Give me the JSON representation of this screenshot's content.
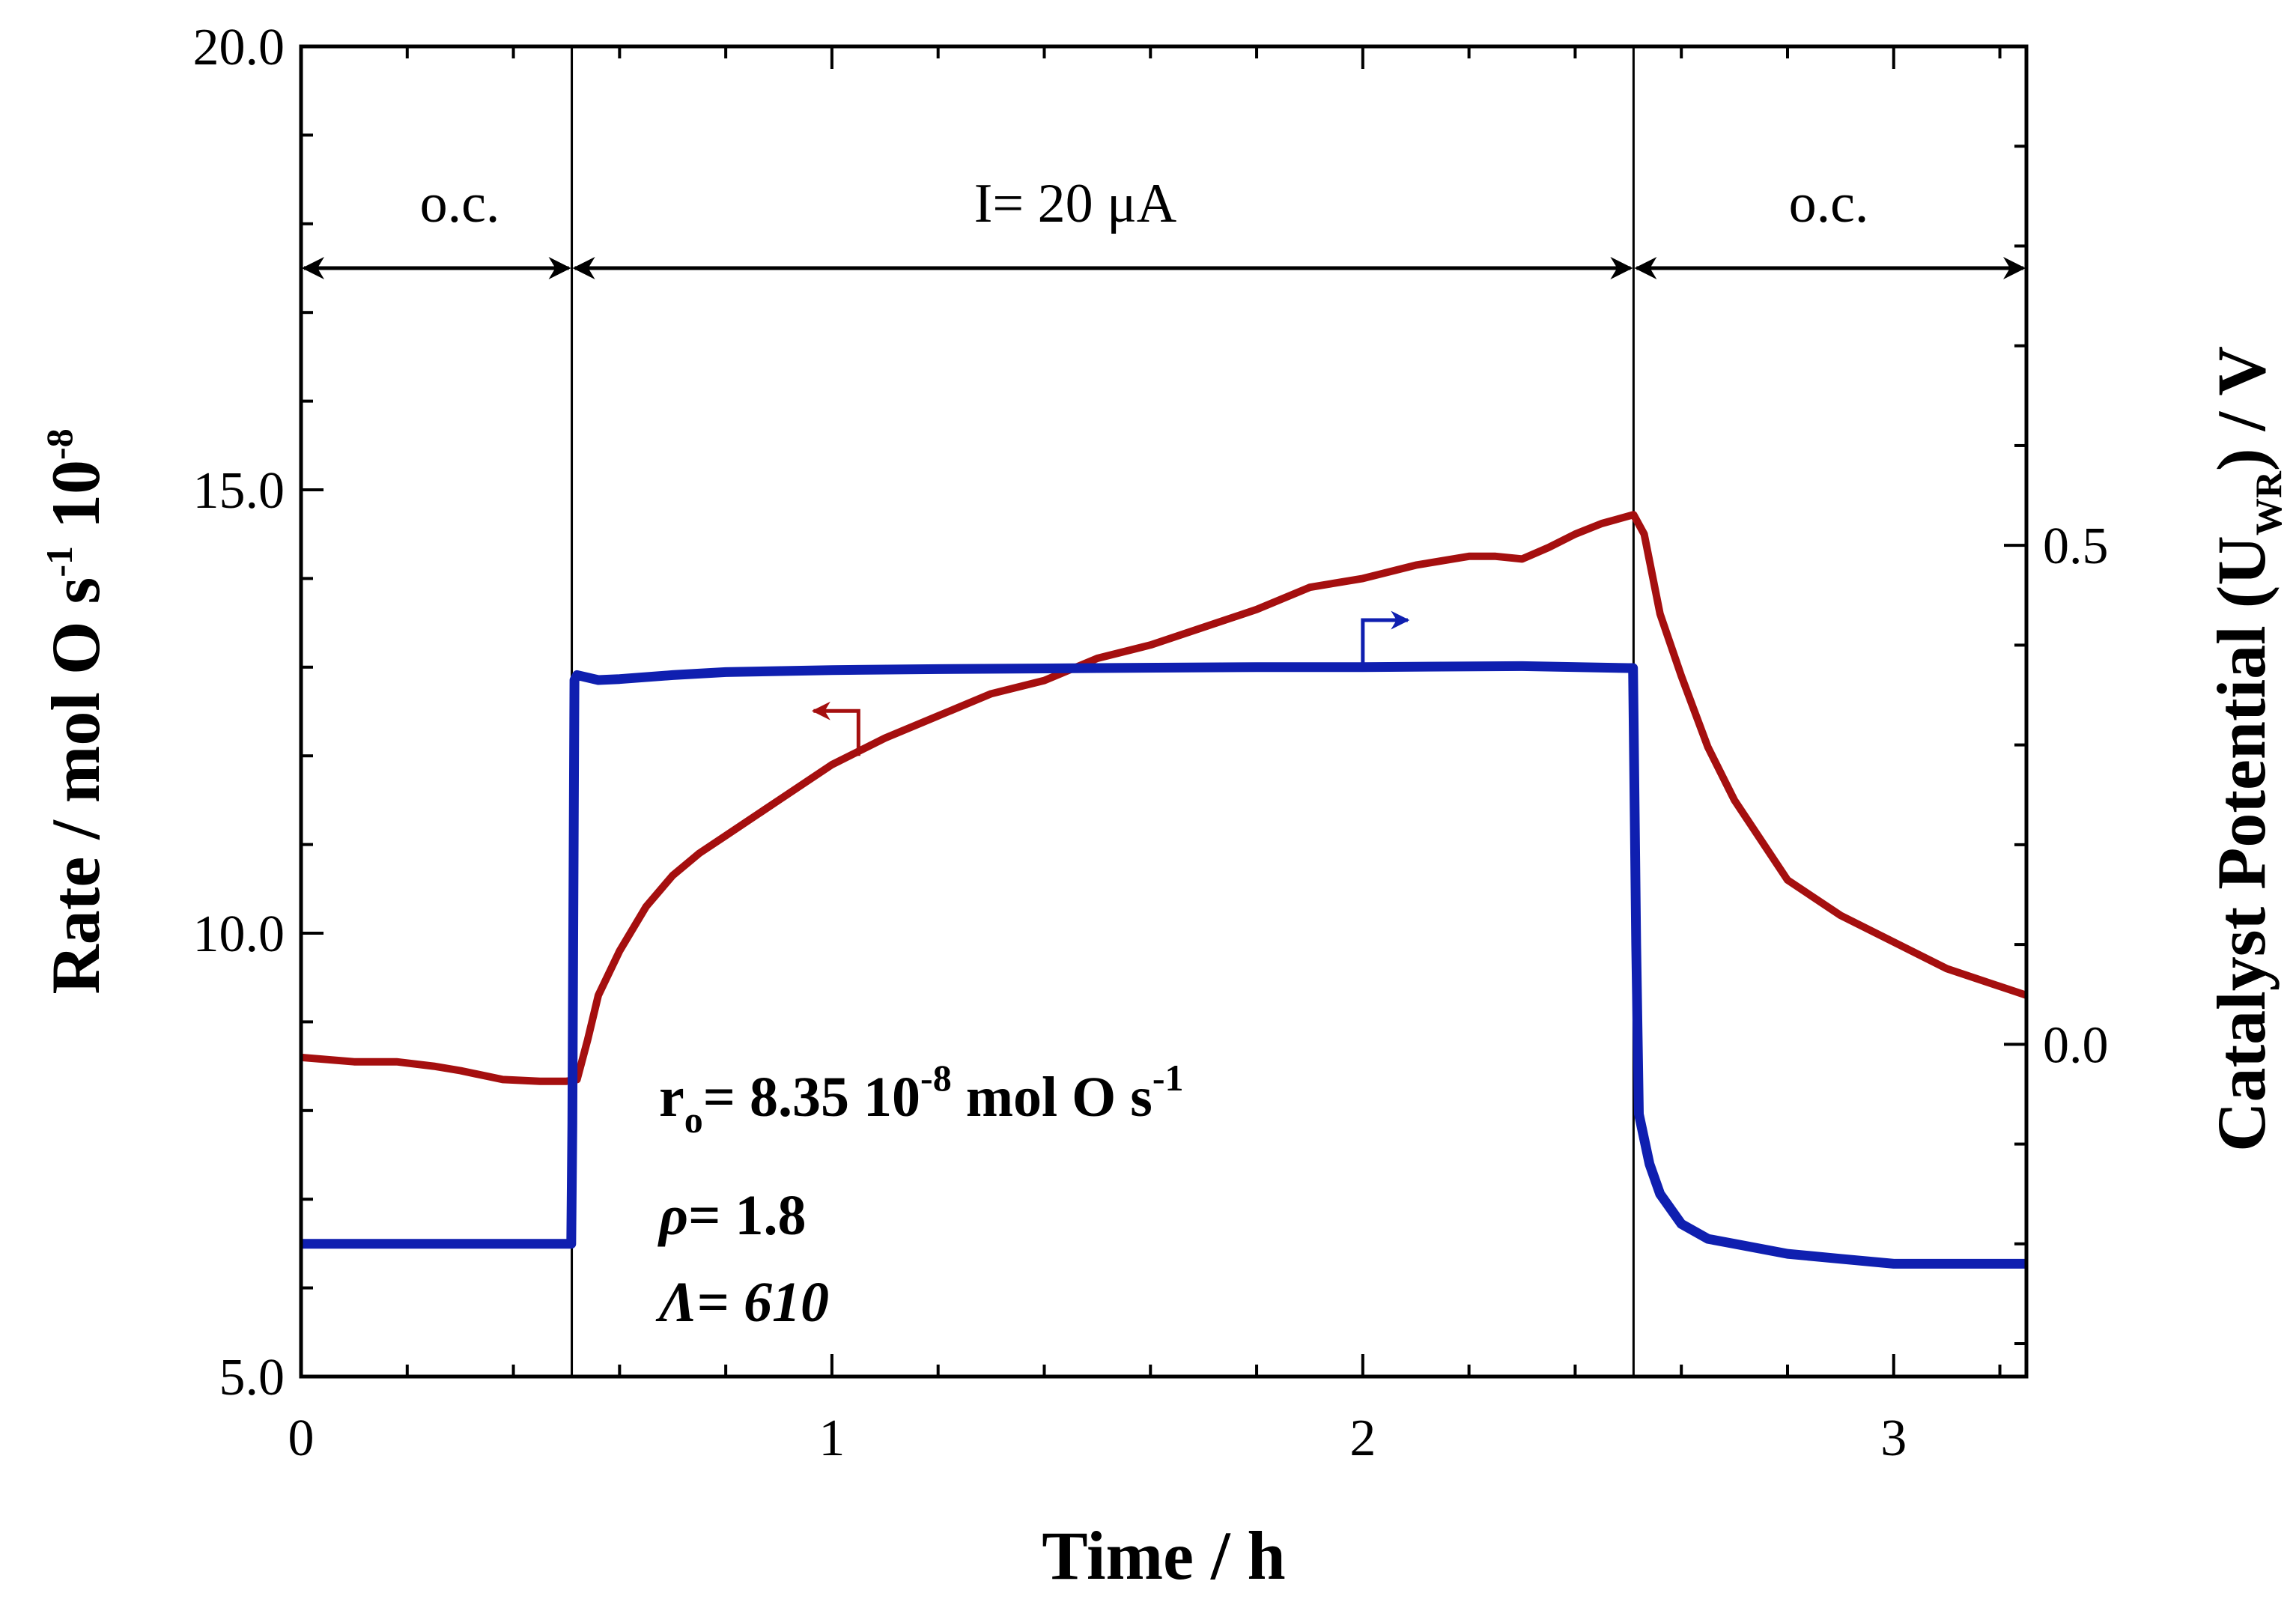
{
  "chart_data": {
    "type": "line",
    "xlabel": "Time / h",
    "ylabel_left_main": "Rate / mol O s",
    "ylabel_left_sup": "-1",
    "ylabel_left_tail": " 10",
    "ylabel_left_sup2": "-8",
    "ylabel_right_main": "Catalyst Potential (U",
    "ylabel_right_sub": "WR",
    "ylabel_right_tail": ") / V",
    "xlim": [
      0,
      3.25
    ],
    "ylim_left": [
      5.0,
      20.0
    ],
    "ylim_right": [
      -0.333,
      1.0
    ],
    "x_ticks": [
      0,
      1,
      2,
      3
    ],
    "x_tick_labels": [
      "0",
      "1",
      "2",
      "3"
    ],
    "y_left_ticks": [
      5.0,
      10.0,
      15.0,
      20.0
    ],
    "y_left_tick_labels": [
      "5.0",
      "10.0",
      "15.0",
      "20.0"
    ],
    "y_right_ticks": [
      0.0,
      0.5
    ],
    "y_right_tick_labels": [
      "0.0",
      "0.5"
    ],
    "vlines": [
      0.51,
      2.51
    ],
    "regions": [
      {
        "label": "o.c.",
        "x": [
          0,
          0.51
        ]
      },
      {
        "label": "I= 20 μA",
        "x": [
          0.51,
          2.51
        ]
      },
      {
        "label": "o.c.",
        "x": [
          2.51,
          3.25
        ]
      }
    ],
    "region_arrow_y": 17.5,
    "series": [
      {
        "name": "Rate",
        "axis": "left",
        "color": "#a50f0f",
        "x": [
          0,
          0.1,
          0.18,
          0.25,
          0.3,
          0.38,
          0.45,
          0.5,
          0.52,
          0.54,
          0.56,
          0.6,
          0.65,
          0.7,
          0.75,
          0.8,
          0.9,
          1.0,
          1.1,
          1.2,
          1.3,
          1.4,
          1.5,
          1.6,
          1.7,
          1.8,
          1.9,
          2.0,
          2.1,
          2.2,
          2.25,
          2.3,
          2.35,
          2.4,
          2.45,
          2.51,
          2.53,
          2.56,
          2.6,
          2.65,
          2.7,
          2.8,
          2.9,
          3.0,
          3.1,
          3.25
        ],
        "y": [
          8.6,
          8.55,
          8.55,
          8.5,
          8.45,
          8.35,
          8.33,
          8.33,
          8.35,
          8.8,
          9.3,
          9.8,
          10.3,
          10.65,
          10.9,
          11.1,
          11.5,
          11.9,
          12.2,
          12.45,
          12.7,
          12.85,
          13.1,
          13.25,
          13.45,
          13.65,
          13.9,
          14.0,
          14.15,
          14.25,
          14.25,
          14.22,
          14.35,
          14.5,
          14.62,
          14.72,
          14.5,
          13.6,
          12.9,
          12.1,
          11.5,
          10.6,
          10.2,
          9.9,
          9.6,
          9.3
        ]
      },
      {
        "name": "Catalyst Potential",
        "axis": "right",
        "color": "#0f1fb0",
        "x": [
          0,
          0.1,
          0.2,
          0.3,
          0.4,
          0.5,
          0.509,
          0.511,
          0.515,
          0.52,
          0.56,
          0.6,
          0.7,
          0.8,
          1.0,
          1.2,
          1.5,
          1.8,
          2.0,
          2.3,
          2.5,
          2.509,
          2.515,
          2.52,
          2.54,
          2.56,
          2.6,
          2.65,
          2.7,
          2.8,
          2.9,
          3.0,
          3.1,
          3.25
        ],
        "y": [
          -0.2,
          -0.2,
          -0.2,
          -0.2,
          -0.2,
          -0.2,
          -0.2,
          -0.08,
          0.365,
          0.37,
          0.365,
          0.366,
          0.37,
          0.373,
          0.375,
          0.376,
          0.377,
          0.378,
          0.378,
          0.379,
          0.377,
          0.377,
          0.1,
          -0.07,
          -0.12,
          -0.15,
          -0.18,
          -0.195,
          -0.2,
          -0.21,
          -0.215,
          -0.22,
          -0.22,
          -0.22
        ]
      }
    ],
    "series_arrows": [
      {
        "series": "Rate",
        "direction": "left",
        "x": 1.05,
        "y": 12.0
      },
      {
        "series": "Catalyst Potential",
        "direction": "right",
        "x": 2.0,
        "y": 0.38
      }
    ],
    "annotations": {
      "r0_main": "r",
      "r0_sub": "o",
      "r0_text": "= 8.35 10",
      "r0_sup": "-8",
      "r0_unit": " mol O s",
      "r0_unit_sup": "-1",
      "rho_symbol": "ρ",
      "rho_text": "= 1.8",
      "lambda_symbol": "Λ",
      "lambda_text": "= ",
      "lambda_value": "610"
    }
  }
}
